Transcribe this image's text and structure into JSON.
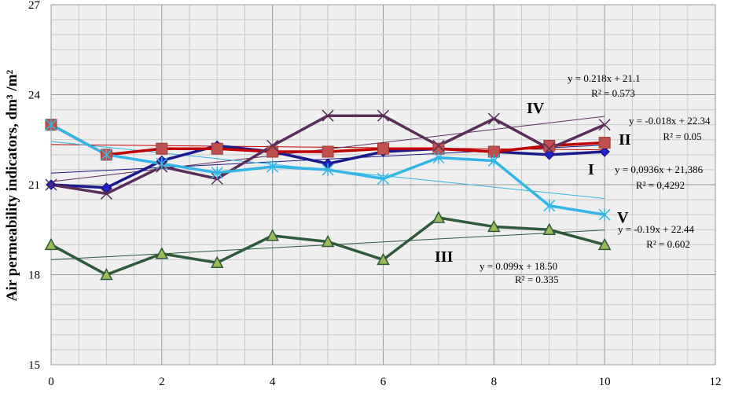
{
  "chart_data": {
    "type": "line",
    "title": "",
    "xlabel": "",
    "ylabel": "Air permeability indicators, dm³ /m²",
    "xlim": [
      0,
      12
    ],
    "ylim": [
      15,
      27
    ],
    "xticks": [
      0,
      2,
      4,
      6,
      8,
      10,
      12
    ],
    "yticks": [
      15,
      18,
      21,
      24,
      27
    ],
    "x_tick_labels": [
      "0",
      "2",
      "4",
      "6",
      "8",
      "10",
      "12"
    ],
    "y_tick_labels": [
      "15",
      "18",
      "21",
      "24",
      "27"
    ],
    "grid": true,
    "x": [
      0,
      1,
      2,
      3,
      4,
      5,
      6,
      7,
      8,
      9,
      10
    ],
    "series": [
      {
        "name": "I",
        "color": "#1a1a8c",
        "marker": "diamond",
        "values": [
          21.0,
          20.9,
          21.8,
          22.3,
          22.1,
          21.7,
          22.1,
          22.2,
          22.1,
          22.0,
          22.1
        ],
        "trend": [
          21.386,
          0.0936
        ],
        "equation": "y = 0,0936x + 21,386",
        "r2": "R² = 0,4292"
      },
      {
        "name": "II",
        "color": "#c00000",
        "marker": "square",
        "values": [
          23.0,
          22.0,
          22.2,
          22.2,
          22.1,
          22.1,
          22.2,
          22.2,
          22.1,
          22.3,
          22.4
        ],
        "trend": [
          22.34,
          -0.018
        ],
        "equation": "y = -0.018x + 22.34",
        "r2": "R² = 0.05"
      },
      {
        "name": "III",
        "color": "#2d5a3a",
        "marker": "triangle",
        "values": [
          19.0,
          18.0,
          18.7,
          18.4,
          19.3,
          19.1,
          18.5,
          19.9,
          19.6,
          19.5,
          19.0
        ],
        "trend": [
          18.5,
          0.099
        ],
        "equation": "y = 0.099x + 18.50",
        "r2": "R² = 0.335"
      },
      {
        "name": "IV",
        "color": "#5a2d5a",
        "marker": "x",
        "values": [
          21.0,
          20.7,
          21.6,
          21.2,
          22.3,
          23.3,
          23.3,
          22.3,
          23.2,
          22.2,
          23.0
        ],
        "trend": [
          21.1,
          0.218
        ],
        "equation": "y = 0.218x + 21.1",
        "r2": "R² = 0.573"
      },
      {
        "name": "V",
        "color": "#33b5e5",
        "marker": "asterisk",
        "values": [
          23.0,
          22.0,
          21.7,
          21.4,
          21.6,
          21.5,
          21.2,
          21.9,
          21.8,
          20.3,
          20.0
        ],
        "trend": [
          22.44,
          -0.19
        ],
        "equation": "y = -0.19x + 22.44",
        "r2": "R² = 0.602"
      }
    ]
  }
}
